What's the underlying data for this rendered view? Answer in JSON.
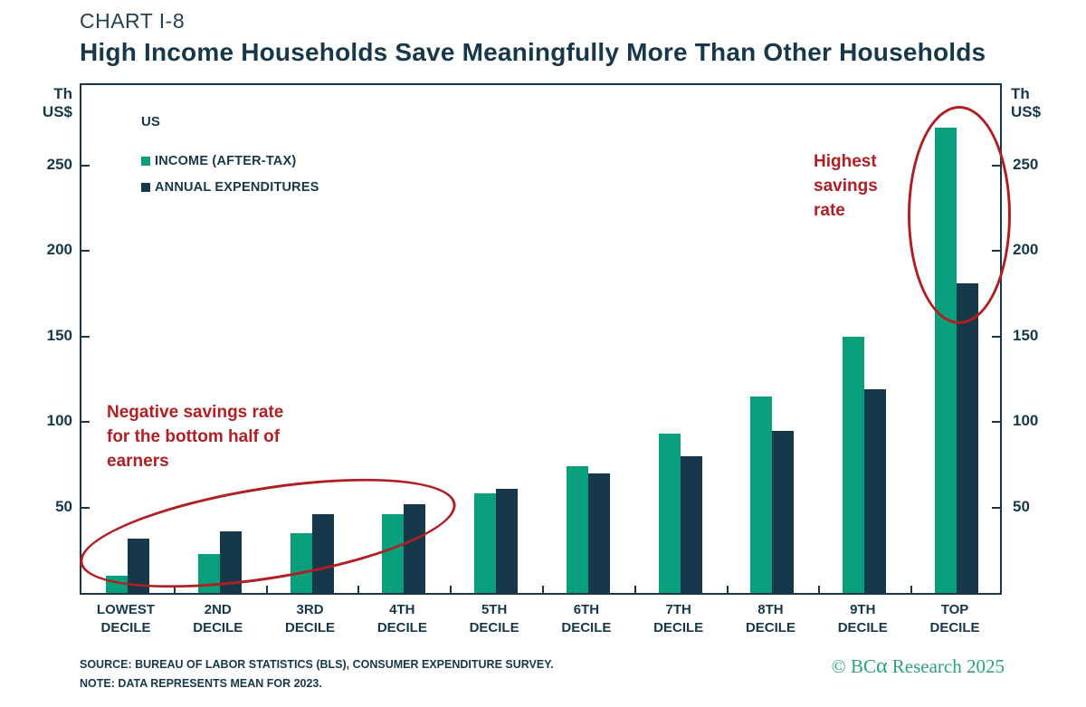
{
  "header": {
    "chart_label": "CHART I-8",
    "title": "High Income Households Save Meaningfully More Than Other Households"
  },
  "axes": {
    "unit_line1": "Th",
    "unit_line2": "US$"
  },
  "legend": {
    "region": "US",
    "items": [
      {
        "label": "INCOME (AFTER-TAX)",
        "color": "#0a9f7c"
      },
      {
        "label": "ANNUAL EXPENDITURES",
        "color": "#16384a"
      }
    ]
  },
  "annotations": {
    "low": {
      "lines": {
        "0": "Negative savings rate",
        "1": "for the bottom half of",
        "2": "earners"
      },
      "color": "#b01f24"
    },
    "high": {
      "lines": {
        "0": "Highest",
        "1": "savings",
        "2": "rate"
      },
      "color": "#b01f24"
    }
  },
  "footer": {
    "source": "SOURCE: BUREAU OF LABOR STATISTICS (BLS), CONSUMER EXPENDITURE SURVEY.",
    "note": "NOTE: DATA REPRESENTS MEAN FOR 2023.",
    "credit_prefix": "© BC",
    "credit_alpha": "α",
    "credit_suffix": " Research 2025",
    "credit_color": "#2aa37e"
  },
  "chart_data": {
    "type": "bar",
    "title": "High Income Households Save Meaningfully More Than Other Households",
    "categories": [
      "LOWEST DECILE",
      "2ND DECILE",
      "3RD DECILE",
      "4TH DECILE",
      "5TH DECILE",
      "6TH DECILE",
      "7TH DECILE",
      "8TH DECILE",
      "9TH DECILE",
      "TOP DECILE"
    ],
    "series": [
      {
        "name": "INCOME (AFTER-TAX)",
        "color": "#0a9f7c",
        "values": [
          10,
          23,
          35,
          46,
          58,
          74,
          93,
          115,
          150,
          272
        ]
      },
      {
        "name": "ANNUAL EXPENDITURES",
        "color": "#16384a",
        "values": [
          32,
          36,
          46,
          52,
          61,
          70,
          80,
          95,
          119,
          181
        ]
      }
    ],
    "xlabel": "",
    "ylabel": "Th US$",
    "ylim": [
      0,
      297
    ],
    "yticks": [
      50,
      100,
      150,
      200,
      250
    ],
    "grid": false,
    "legend_position": "upper-left"
  }
}
